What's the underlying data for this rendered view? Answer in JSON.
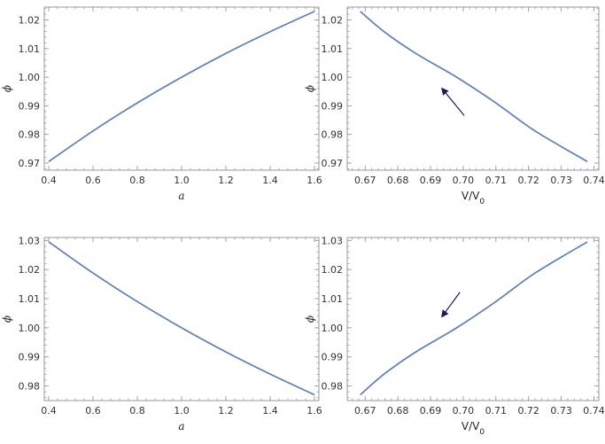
{
  "style": {
    "line_color": "#5b7fb5",
    "arrow_color": "#1c1a5a",
    "frame_color": "#999999"
  },
  "chart_data": [
    {
      "type": "line",
      "xlabel": "a",
      "ylabel": "ϕ",
      "xlim": [
        0.38,
        1.62
      ],
      "ylim": [
        0.9675,
        1.0245
      ],
      "xticks": [
        "0.4",
        "0.6",
        "0.8",
        "1.0",
        "1.2",
        "1.4",
        "1.6"
      ],
      "yticks": [
        "0.97",
        "0.98",
        "0.99",
        "1.00",
        "1.01",
        "1.02"
      ],
      "x": [
        0.4,
        0.6,
        0.8,
        1.0,
        1.2,
        1.4,
        1.6
      ],
      "y": [
        0.9705,
        0.9812,
        0.991,
        1.0,
        1.0083,
        1.0159,
        1.023
      ]
    },
    {
      "type": "line",
      "xlabel": "V/V",
      "xlabel_sub": "0",
      "ylabel": "ϕ",
      "xlim": [
        0.6645,
        0.7415
      ],
      "ylim": [
        0.9675,
        1.0245
      ],
      "xticks": [
        "0.67",
        "0.68",
        "0.69",
        "0.70",
        "0.71",
        "0.72",
        "0.73",
        "0.74"
      ],
      "yticks": [
        "0.97",
        "0.98",
        "0.99",
        "1.00",
        "1.01",
        "1.02"
      ],
      "x": [
        0.6685,
        0.6758,
        0.6855,
        0.698,
        0.71,
        0.722,
        0.738
      ],
      "y": [
        1.023,
        1.0159,
        1.0083,
        1.0,
        0.991,
        0.9812,
        0.9705
      ],
      "arrow": {
        "from": [
          0.7003,
          0.9866
        ],
        "to": [
          0.6934,
          0.9962
        ]
      }
    },
    {
      "type": "line",
      "xlabel": "a",
      "ylabel": "ϕ",
      "xlim": [
        0.38,
        1.62
      ],
      "ylim": [
        0.975,
        1.031
      ],
      "xticks": [
        "0.4",
        "0.6",
        "0.8",
        "1.0",
        "1.2",
        "1.4",
        "1.6"
      ],
      "yticks": [
        "0.98",
        "0.99",
        "1.00",
        "1.01",
        "1.02",
        "1.03"
      ],
      "x": [
        0.4,
        0.6,
        0.8,
        1.0,
        1.2,
        1.4,
        1.6
      ],
      "y": [
        1.0295,
        1.0188,
        1.009,
        1.0,
        0.9917,
        0.9841,
        0.977
      ]
    },
    {
      "type": "line",
      "xlabel": "V/V",
      "xlabel_sub": "0",
      "ylabel": "ϕ",
      "xlim": [
        0.6645,
        0.7415
      ],
      "ylim": [
        0.975,
        1.031
      ],
      "xticks": [
        "0.67",
        "0.68",
        "0.69",
        "0.70",
        "0.71",
        "0.72",
        "0.73",
        "0.74"
      ],
      "yticks": [
        "0.98",
        "0.99",
        "1.00",
        "1.01",
        "1.02",
        "1.03"
      ],
      "x": [
        0.6685,
        0.6758,
        0.6855,
        0.698,
        0.71,
        0.722,
        0.738
      ],
      "y": [
        0.977,
        0.9841,
        0.9917,
        1.0,
        1.009,
        1.0188,
        1.0295
      ],
      "arrow": {
        "from": [
          0.699,
          1.0122
        ],
        "to": [
          0.6934,
          1.0037
        ]
      }
    }
  ]
}
